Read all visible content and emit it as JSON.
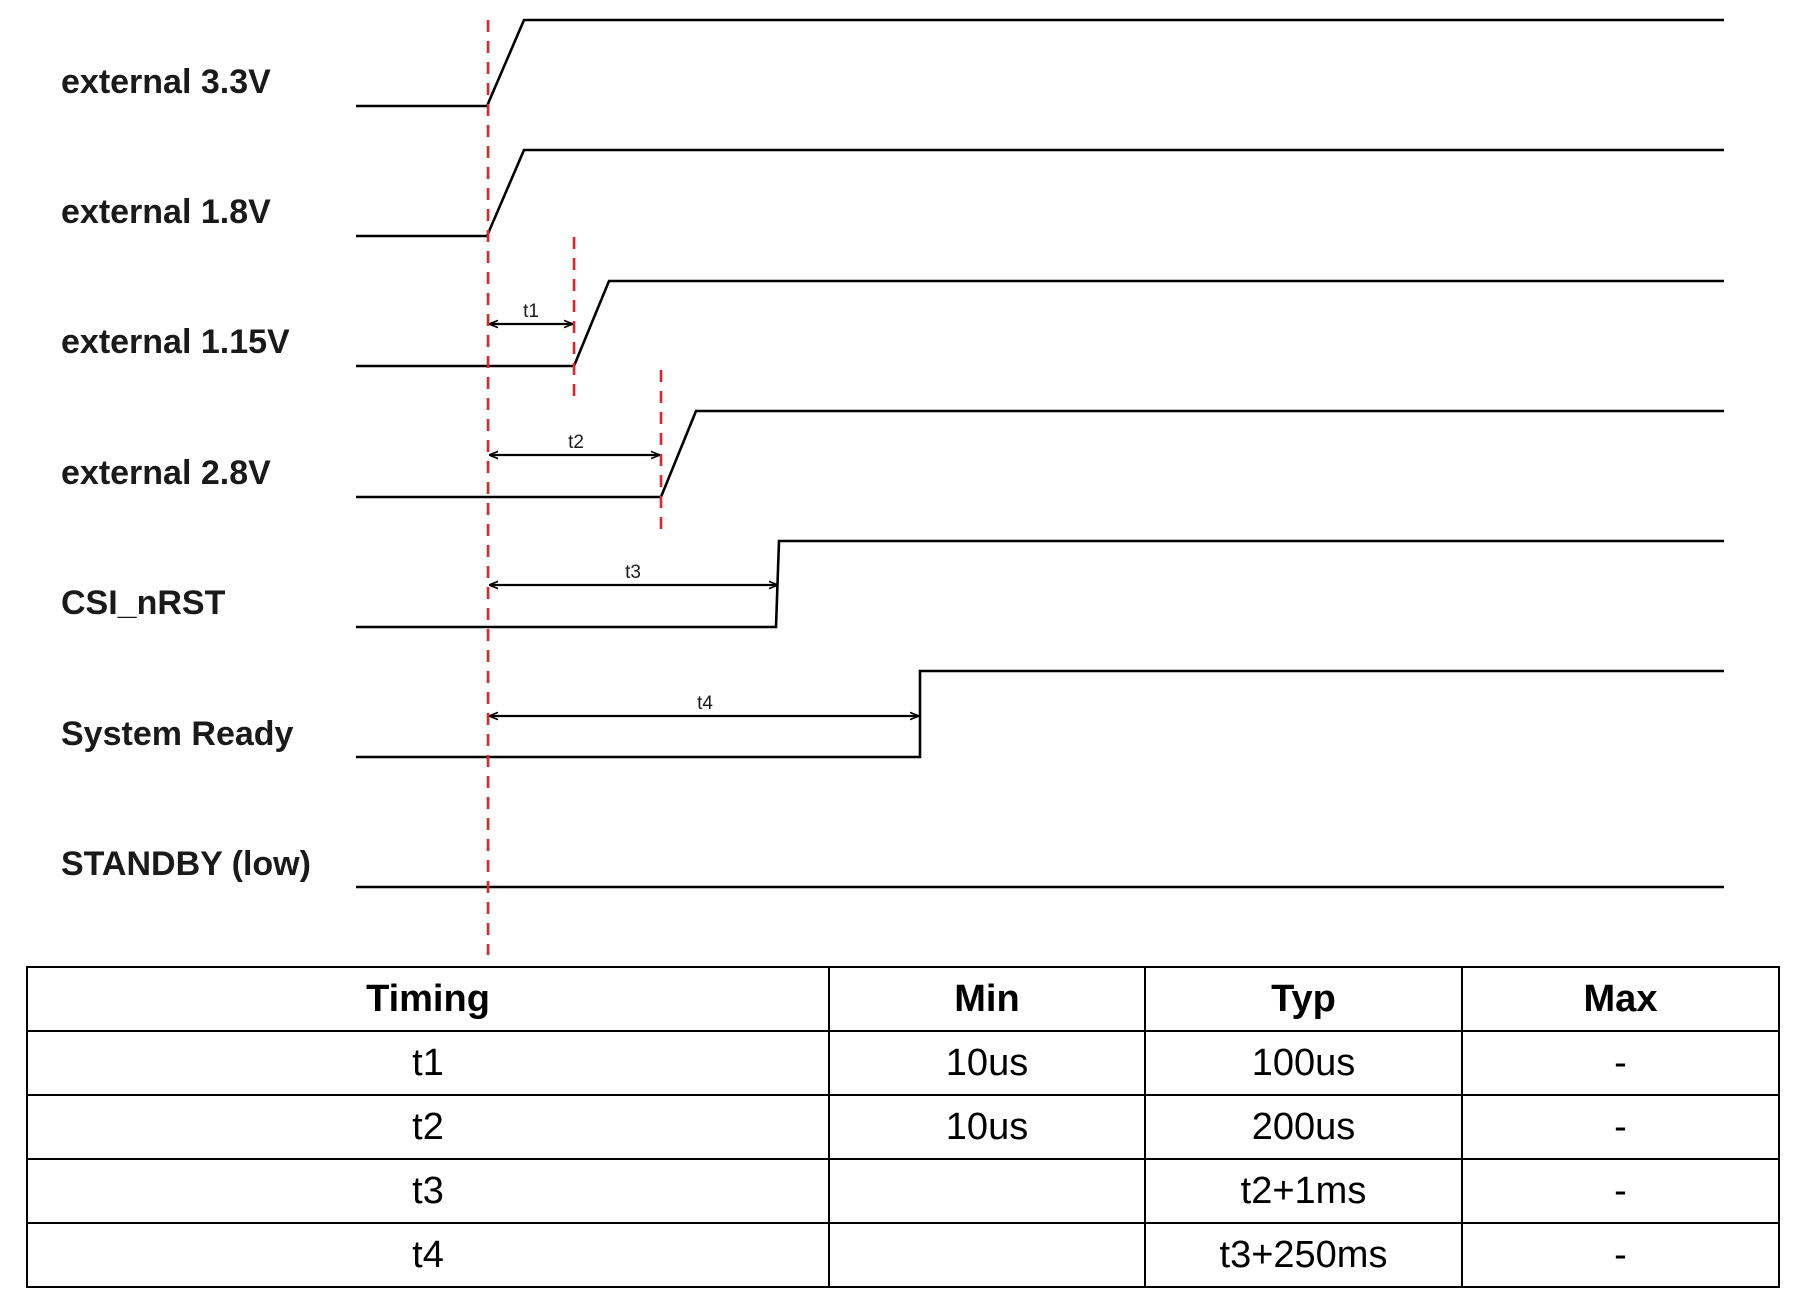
{
  "signals": [
    {
      "label": "external 3.3V"
    },
    {
      "label": "external 1.8V"
    },
    {
      "label": "external 1.15V"
    },
    {
      "label": "external 2.8V"
    },
    {
      "label": "CSI_nRST"
    },
    {
      "label": "System Ready"
    },
    {
      "label": "STANDBY (low)"
    }
  ],
  "intervals": [
    {
      "label": "t1"
    },
    {
      "label": "t2"
    },
    {
      "label": "t3"
    },
    {
      "label": "t4"
    }
  ],
  "colors": {
    "guide": "#e0242b",
    "wave": "#000000"
  },
  "table": {
    "headers": [
      "Timing",
      "Min",
      "Typ",
      "Max"
    ],
    "rows": [
      [
        "t1",
        "10us",
        "100us",
        "-"
      ],
      [
        "t2",
        "10us",
        "200us",
        "-"
      ],
      [
        "t3",
        "",
        "t2+1ms",
        "-"
      ],
      [
        "t4",
        "",
        "t3+250ms",
        "-"
      ]
    ]
  }
}
